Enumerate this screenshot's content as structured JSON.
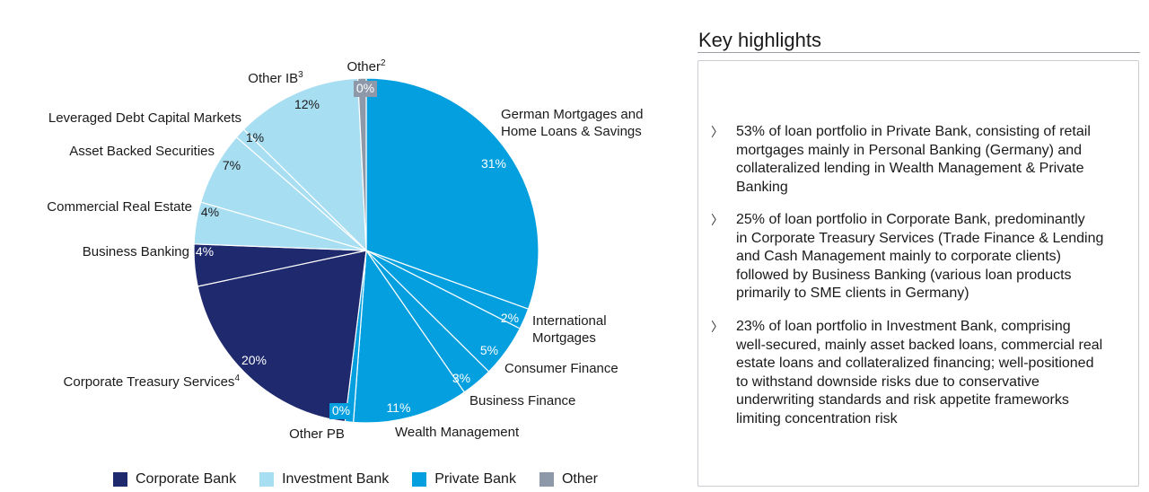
{
  "chart_data": {
    "type": "pie",
    "slices": [
      {
        "label": "German Mortgages and Home Loans & Savings",
        "label_lines": [
          "German Mortgages and",
          "Home Loans & Savings"
        ],
        "value": 31,
        "pct": "31%",
        "group": "Private Bank"
      },
      {
        "label": "International Mortgages",
        "label_lines": [
          "International",
          "Mortgages"
        ],
        "value": 2,
        "pct": "2%",
        "group": "Private Bank"
      },
      {
        "label": "Consumer Finance",
        "label_lines": [
          "Consumer Finance"
        ],
        "value": 5,
        "pct": "5%",
        "group": "Private Bank"
      },
      {
        "label": "Business Finance",
        "label_lines": [
          "Business Finance"
        ],
        "value": 3,
        "pct": "3%",
        "group": "Private Bank"
      },
      {
        "label": "Wealth Management",
        "label_lines": [
          "Wealth Management"
        ],
        "value": 11,
        "pct": "11%",
        "group": "Private Bank"
      },
      {
        "label": "Other PB",
        "label_lines": [
          "Other PB"
        ],
        "value": 0,
        "pct": "0%",
        "group": "Private Bank"
      },
      {
        "label": "Corporate Treasury Services4",
        "label_lines": [
          "Corporate Treasury Services"
        ],
        "sup": "4",
        "value": 20,
        "pct": "20%",
        "group": "Corporate Bank"
      },
      {
        "label": "Business Banking",
        "label_lines": [
          "Business Banking"
        ],
        "value": 4,
        "pct": "4%",
        "group": "Corporate Bank"
      },
      {
        "label": "Commercial Real Estate",
        "label_lines": [
          "Commercial Real Estate"
        ],
        "value": 4,
        "pct": "4%",
        "group": "Investment Bank"
      },
      {
        "label": "Asset Backed Securities",
        "label_lines": [
          "Asset Backed Securities"
        ],
        "value": 7,
        "pct": "7%",
        "group": "Investment Bank"
      },
      {
        "label": "Leveraged Debt Capital Markets",
        "label_lines": [
          "Leveraged Debt Capital Markets"
        ],
        "value": 1,
        "pct": "1%",
        "group": "Investment Bank"
      },
      {
        "label": "Other IB3",
        "label_lines": [
          "Other IB"
        ],
        "sup": "3",
        "value": 12,
        "pct": "12%",
        "group": "Investment Bank"
      },
      {
        "label": "Other2",
        "label_lines": [
          "Other"
        ],
        "sup": "2",
        "value": 0,
        "pct": "0%",
        "group": "Other"
      }
    ],
    "legend": [
      {
        "name": "Corporate Bank",
        "color": "#1f2a6e"
      },
      {
        "name": "Investment Bank",
        "color": "#a8def2"
      },
      {
        "name": "Private Bank",
        "color": "#039fdf"
      },
      {
        "name": "Other",
        "color": "#8d99a8"
      }
    ],
    "legend_position": "bottom"
  },
  "key_highlights": {
    "title": "Key highlights",
    "bullet_icon": "chevron-right-icon",
    "bullets": [
      {
        "lines": [
          "53% of loan portfolio in Private Bank, consisting of retail",
          "mortgages mainly in Personal Banking (Germany) and",
          "collateralized lending in Wealth Management & Private",
          "Banking"
        ]
      },
      {
        "lines": [
          "25% of loan portfolio in Corporate Bank, predominantly",
          "in Corporate Treasury Services (Trade Finance & Lending",
          "and Cash Management mainly to corporate clients)",
          "followed by Business Banking (various loan products",
          "primarily to SME clients in Germany)"
        ]
      },
      {
        "lines": [
          "23% of loan portfolio in Investment Bank, comprising",
          "well-secured, mainly asset backed loans, commercial real",
          "estate loans and collateralized financing; well-positioned",
          "to withstand downside risks due to conservative",
          "underwriting standards and risk appetite frameworks",
          "limiting concentration risk"
        ]
      }
    ]
  }
}
